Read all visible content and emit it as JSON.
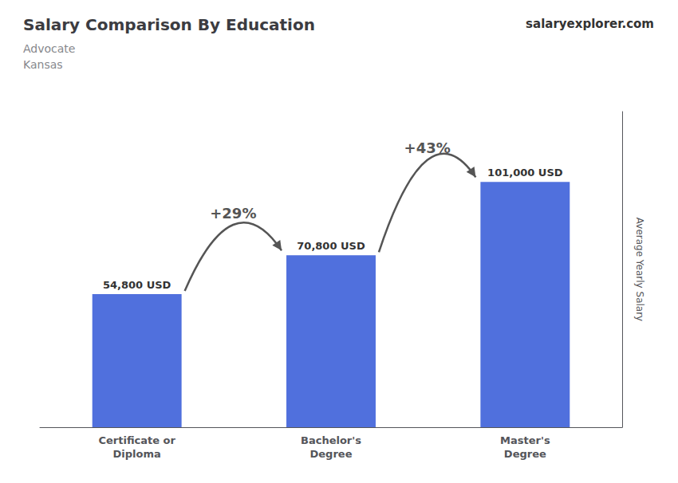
{
  "chart_data": {
    "type": "bar",
    "title": "Salary Comparison By Education",
    "subtitle": [
      "Advocate",
      "Kansas"
    ],
    "ylabel": "Average Yearly Salary",
    "categories": [
      "Certificate or\nDiploma",
      "Bachelor's\nDegree",
      "Master's\nDegree"
    ],
    "values": [
      54800,
      70800,
      101000
    ],
    "value_labels": [
      "54,800 USD",
      "70,800 USD",
      "101,000 USD"
    ],
    "data_labels": true,
    "ylim": [
      0,
      130000
    ],
    "grid": false,
    "tick_labels": "x",
    "annotations": [
      {
        "text": "+29%",
        "from": "Certificate or\nDiploma",
        "to": "Bachelor's\nDegree"
      },
      {
        "text": "+43%",
        "from": "Bachelor's\nDegree",
        "to": "Master's\nDegree"
      },
      {
        "text": "salary"
      },
      {
        "text": "explorer.com"
      }
    ]
  }
}
